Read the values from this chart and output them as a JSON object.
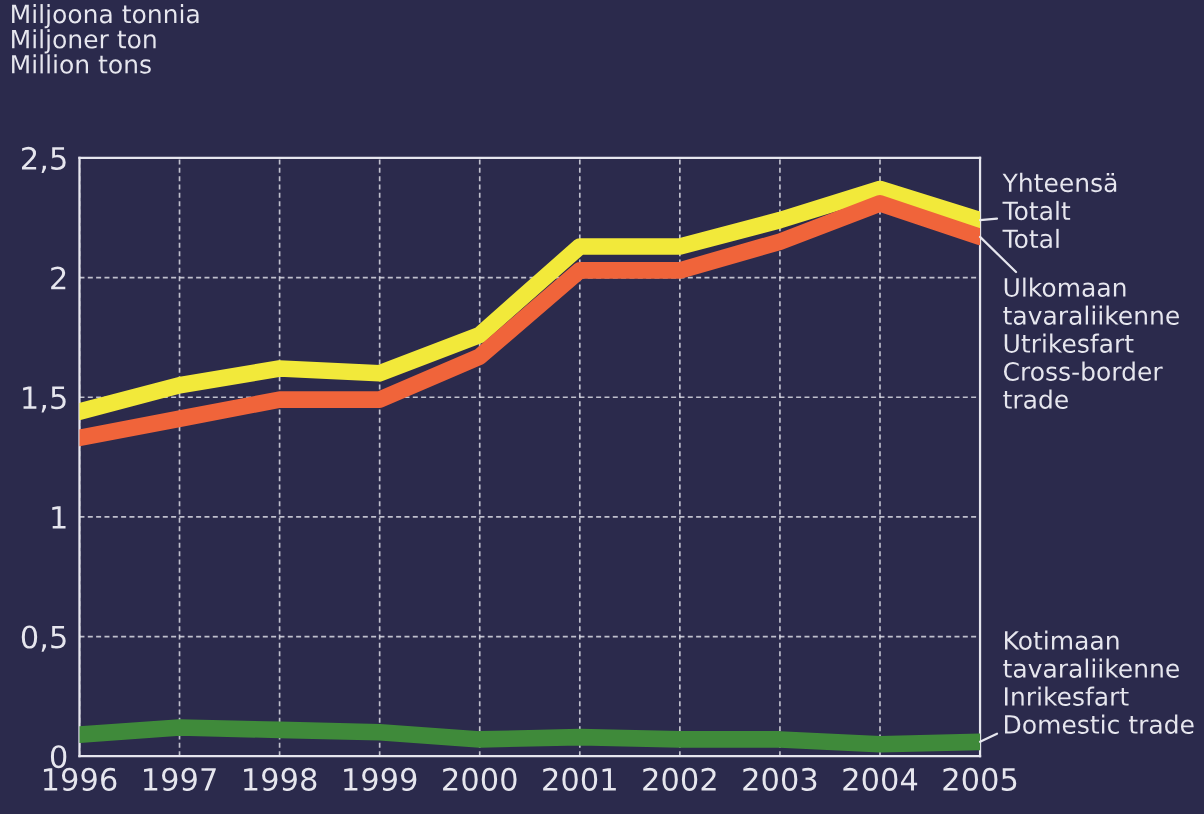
{
  "chart_data": {
    "type": "line",
    "ylabel": "Miljoona tonnia\nMiljoner ton\nMillion tons",
    "x": [
      1996,
      1997,
      1998,
      1999,
      2000,
      2001,
      2002,
      2003,
      2004,
      2005
    ],
    "xlim": [
      1996,
      2005
    ],
    "xticks": [
      1996,
      1997,
      1998,
      1999,
      2000,
      2001,
      2002,
      2003,
      2004,
      2005
    ],
    "ylim": [
      0,
      2.5
    ],
    "yticks": [
      0,
      {
        "value": 0.5,
        "label": "0,5"
      },
      1,
      {
        "value": 1.5,
        "label": "1,5"
      },
      2,
      {
        "value": 2.5,
        "label": "2,5"
      }
    ],
    "grid": true,
    "legend": false,
    "marker": "none",
    "line_style": "solid",
    "series": [
      {
        "name": "Yhteensä\nTotalt\nTotal",
        "color": "#f2e93a",
        "values": [
          1.44,
          1.55,
          1.62,
          1.6,
          1.76,
          2.13,
          2.13,
          2.24,
          2.37,
          2.24
        ]
      },
      {
        "name": "Ulkomaan\ntavaraliikenne\nUtrikesfart\nCross-border\ntrade",
        "color": "#f0643a",
        "values": [
          1.33,
          1.41,
          1.49,
          1.49,
          1.67,
          2.03,
          2.03,
          2.15,
          2.31,
          2.17
        ]
      },
      {
        "name": "Kotimaan\ntavaraliikenne\nInrikesfart\nDomestic trade",
        "color": "#3f8a3a",
        "values": [
          0.09,
          0.12,
          0.11,
          0.1,
          0.07,
          0.08,
          0.07,
          0.07,
          0.05,
          0.06
        ]
      }
    ]
  }
}
